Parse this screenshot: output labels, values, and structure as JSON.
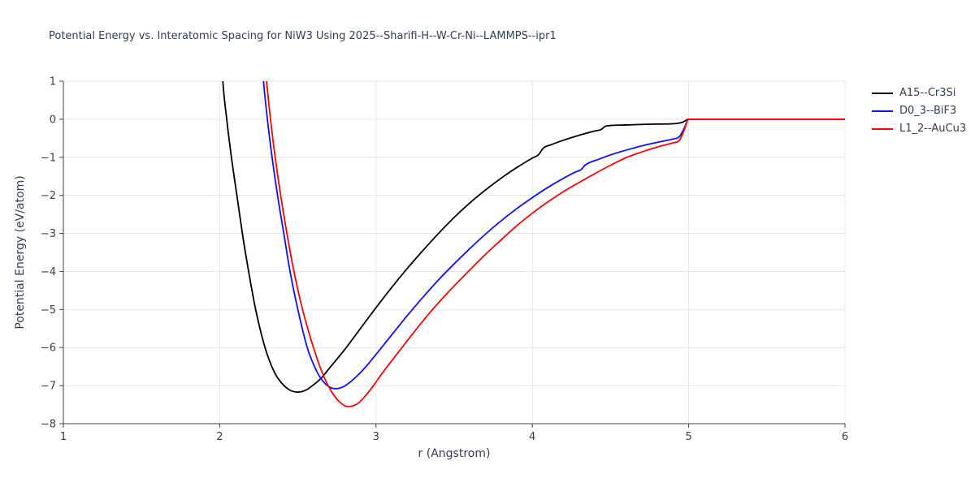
{
  "colors": {
    "background": "#ffffff",
    "text": "#2f3e56",
    "tick_text": "#3c3c3c",
    "grid": "#e6e6e6",
    "spine": "#444444"
  },
  "chart_data": {
    "type": "line",
    "title": "Potential Energy vs. Interatomic Spacing for NiW3 Using 2025--Sharifi-H--W-Cr-Ni--LAMMPS--ipr1",
    "xlabel": "r (Angstrom)",
    "ylabel": "Potential Energy (eV/atom)",
    "xlim": [
      1,
      6
    ],
    "ylim": [
      -8,
      1
    ],
    "x_ticks": [
      1,
      2,
      3,
      4,
      5,
      6
    ],
    "x_tick_labels": [
      "1",
      "2",
      "3",
      "4",
      "5",
      "6"
    ],
    "y_ticks": [
      1,
      0,
      -1,
      -2,
      -3,
      -4,
      -5,
      -6,
      -7,
      -8
    ],
    "y_tick_labels": [
      "1",
      "0",
      "−1",
      "−2",
      "−3",
      "−4",
      "−5",
      "−6",
      "−7",
      "−8"
    ],
    "grid": true,
    "legend_position": "top-right-outside",
    "series": [
      {
        "name": "A15--Cr3Si",
        "color": "#000000",
        "points": [
          [
            2.0,
            2.5
          ],
          [
            2.02,
            1.0
          ],
          [
            2.045,
            0.0
          ],
          [
            2.075,
            -1.0
          ],
          [
            2.11,
            -2.0
          ],
          [
            2.145,
            -3.0
          ],
          [
            2.185,
            -4.0
          ],
          [
            2.23,
            -5.0
          ],
          [
            2.29,
            -6.0
          ],
          [
            2.35,
            -6.65
          ],
          [
            2.4,
            -6.95
          ],
          [
            2.45,
            -7.12
          ],
          [
            2.5,
            -7.17
          ],
          [
            2.55,
            -7.12
          ],
          [
            2.6,
            -6.98
          ],
          [
            2.65,
            -6.8
          ],
          [
            2.7,
            -6.55
          ],
          [
            2.8,
            -6.05
          ],
          [
            2.9,
            -5.5
          ],
          [
            3.0,
            -4.95
          ],
          [
            3.1,
            -4.42
          ],
          [
            3.2,
            -3.92
          ],
          [
            3.3,
            -3.45
          ],
          [
            3.4,
            -3.0
          ],
          [
            3.5,
            -2.58
          ],
          [
            3.6,
            -2.2
          ],
          [
            3.7,
            -1.86
          ],
          [
            3.8,
            -1.55
          ],
          [
            3.9,
            -1.27
          ],
          [
            4.0,
            -1.02
          ],
          [
            4.04,
            -0.93
          ],
          [
            4.07,
            -0.76
          ],
          [
            4.12,
            -0.67
          ],
          [
            4.2,
            -0.55
          ],
          [
            4.3,
            -0.42
          ],
          [
            4.4,
            -0.31
          ],
          [
            4.44,
            -0.27
          ],
          [
            4.47,
            -0.18
          ],
          [
            4.6,
            -0.15
          ],
          [
            4.75,
            -0.13
          ],
          [
            4.9,
            -0.12
          ],
          [
            4.96,
            -0.08
          ],
          [
            5.0,
            0.0
          ],
          [
            5.5,
            0.0
          ],
          [
            6.0,
            0.0
          ]
        ]
      },
      {
        "name": "D0_3--BiF3",
        "color": "#0e0eff",
        "points": [
          [
            2.26,
            2.0
          ],
          [
            2.28,
            1.0
          ],
          [
            2.305,
            0.0
          ],
          [
            2.335,
            -1.0
          ],
          [
            2.37,
            -2.0
          ],
          [
            2.41,
            -3.0
          ],
          [
            2.45,
            -4.0
          ],
          [
            2.5,
            -5.0
          ],
          [
            2.56,
            -6.0
          ],
          [
            2.62,
            -6.62
          ],
          [
            2.66,
            -6.88
          ],
          [
            2.7,
            -7.03
          ],
          [
            2.74,
            -7.08
          ],
          [
            2.79,
            -7.03
          ],
          [
            2.84,
            -6.89
          ],
          [
            2.9,
            -6.66
          ],
          [
            2.95,
            -6.43
          ],
          [
            3.0,
            -6.18
          ],
          [
            3.1,
            -5.67
          ],
          [
            3.2,
            -5.16
          ],
          [
            3.3,
            -4.68
          ],
          [
            3.4,
            -4.22
          ],
          [
            3.5,
            -3.8
          ],
          [
            3.6,
            -3.4
          ],
          [
            3.7,
            -3.02
          ],
          [
            3.8,
            -2.67
          ],
          [
            3.9,
            -2.35
          ],
          [
            4.0,
            -2.06
          ],
          [
            4.1,
            -1.79
          ],
          [
            4.2,
            -1.55
          ],
          [
            4.28,
            -1.38
          ],
          [
            4.31,
            -1.33
          ],
          [
            4.34,
            -1.2
          ],
          [
            4.42,
            -1.06
          ],
          [
            4.52,
            -0.91
          ],
          [
            4.62,
            -0.79
          ],
          [
            4.72,
            -0.68
          ],
          [
            4.82,
            -0.59
          ],
          [
            4.9,
            -0.52
          ],
          [
            4.94,
            -0.46
          ],
          [
            4.97,
            -0.25
          ],
          [
            5.0,
            0.0
          ],
          [
            5.5,
            0.0
          ],
          [
            6.0,
            0.0
          ]
        ]
      },
      {
        "name": "L1_2--AuCu3",
        "color": "#ff0000",
        "points": [
          [
            2.28,
            2.0
          ],
          [
            2.3,
            1.0
          ],
          [
            2.325,
            0.0
          ],
          [
            2.355,
            -1.0
          ],
          [
            2.39,
            -2.0
          ],
          [
            2.43,
            -3.0
          ],
          [
            2.475,
            -4.0
          ],
          [
            2.53,
            -5.0
          ],
          [
            2.6,
            -6.0
          ],
          [
            2.66,
            -6.7
          ],
          [
            2.71,
            -7.12
          ],
          [
            2.76,
            -7.4
          ],
          [
            2.82,
            -7.55
          ],
          [
            2.88,
            -7.48
          ],
          [
            2.93,
            -7.28
          ],
          [
            2.98,
            -7.02
          ],
          [
            3.03,
            -6.73
          ],
          [
            3.1,
            -6.35
          ],
          [
            3.2,
            -5.82
          ],
          [
            3.3,
            -5.3
          ],
          [
            3.4,
            -4.82
          ],
          [
            3.5,
            -4.38
          ],
          [
            3.6,
            -3.96
          ],
          [
            3.7,
            -3.55
          ],
          [
            3.8,
            -3.17
          ],
          [
            3.9,
            -2.8
          ],
          [
            4.0,
            -2.47
          ],
          [
            4.1,
            -2.17
          ],
          [
            4.2,
            -1.9
          ],
          [
            4.3,
            -1.66
          ],
          [
            4.4,
            -1.43
          ],
          [
            4.5,
            -1.21
          ],
          [
            4.6,
            -1.01
          ],
          [
            4.7,
            -0.86
          ],
          [
            4.8,
            -0.73
          ],
          [
            4.9,
            -0.62
          ],
          [
            4.94,
            -0.56
          ],
          [
            4.97,
            -0.3
          ],
          [
            5.0,
            0.0
          ],
          [
            5.5,
            0.0
          ],
          [
            6.0,
            0.0
          ]
        ]
      }
    ]
  }
}
